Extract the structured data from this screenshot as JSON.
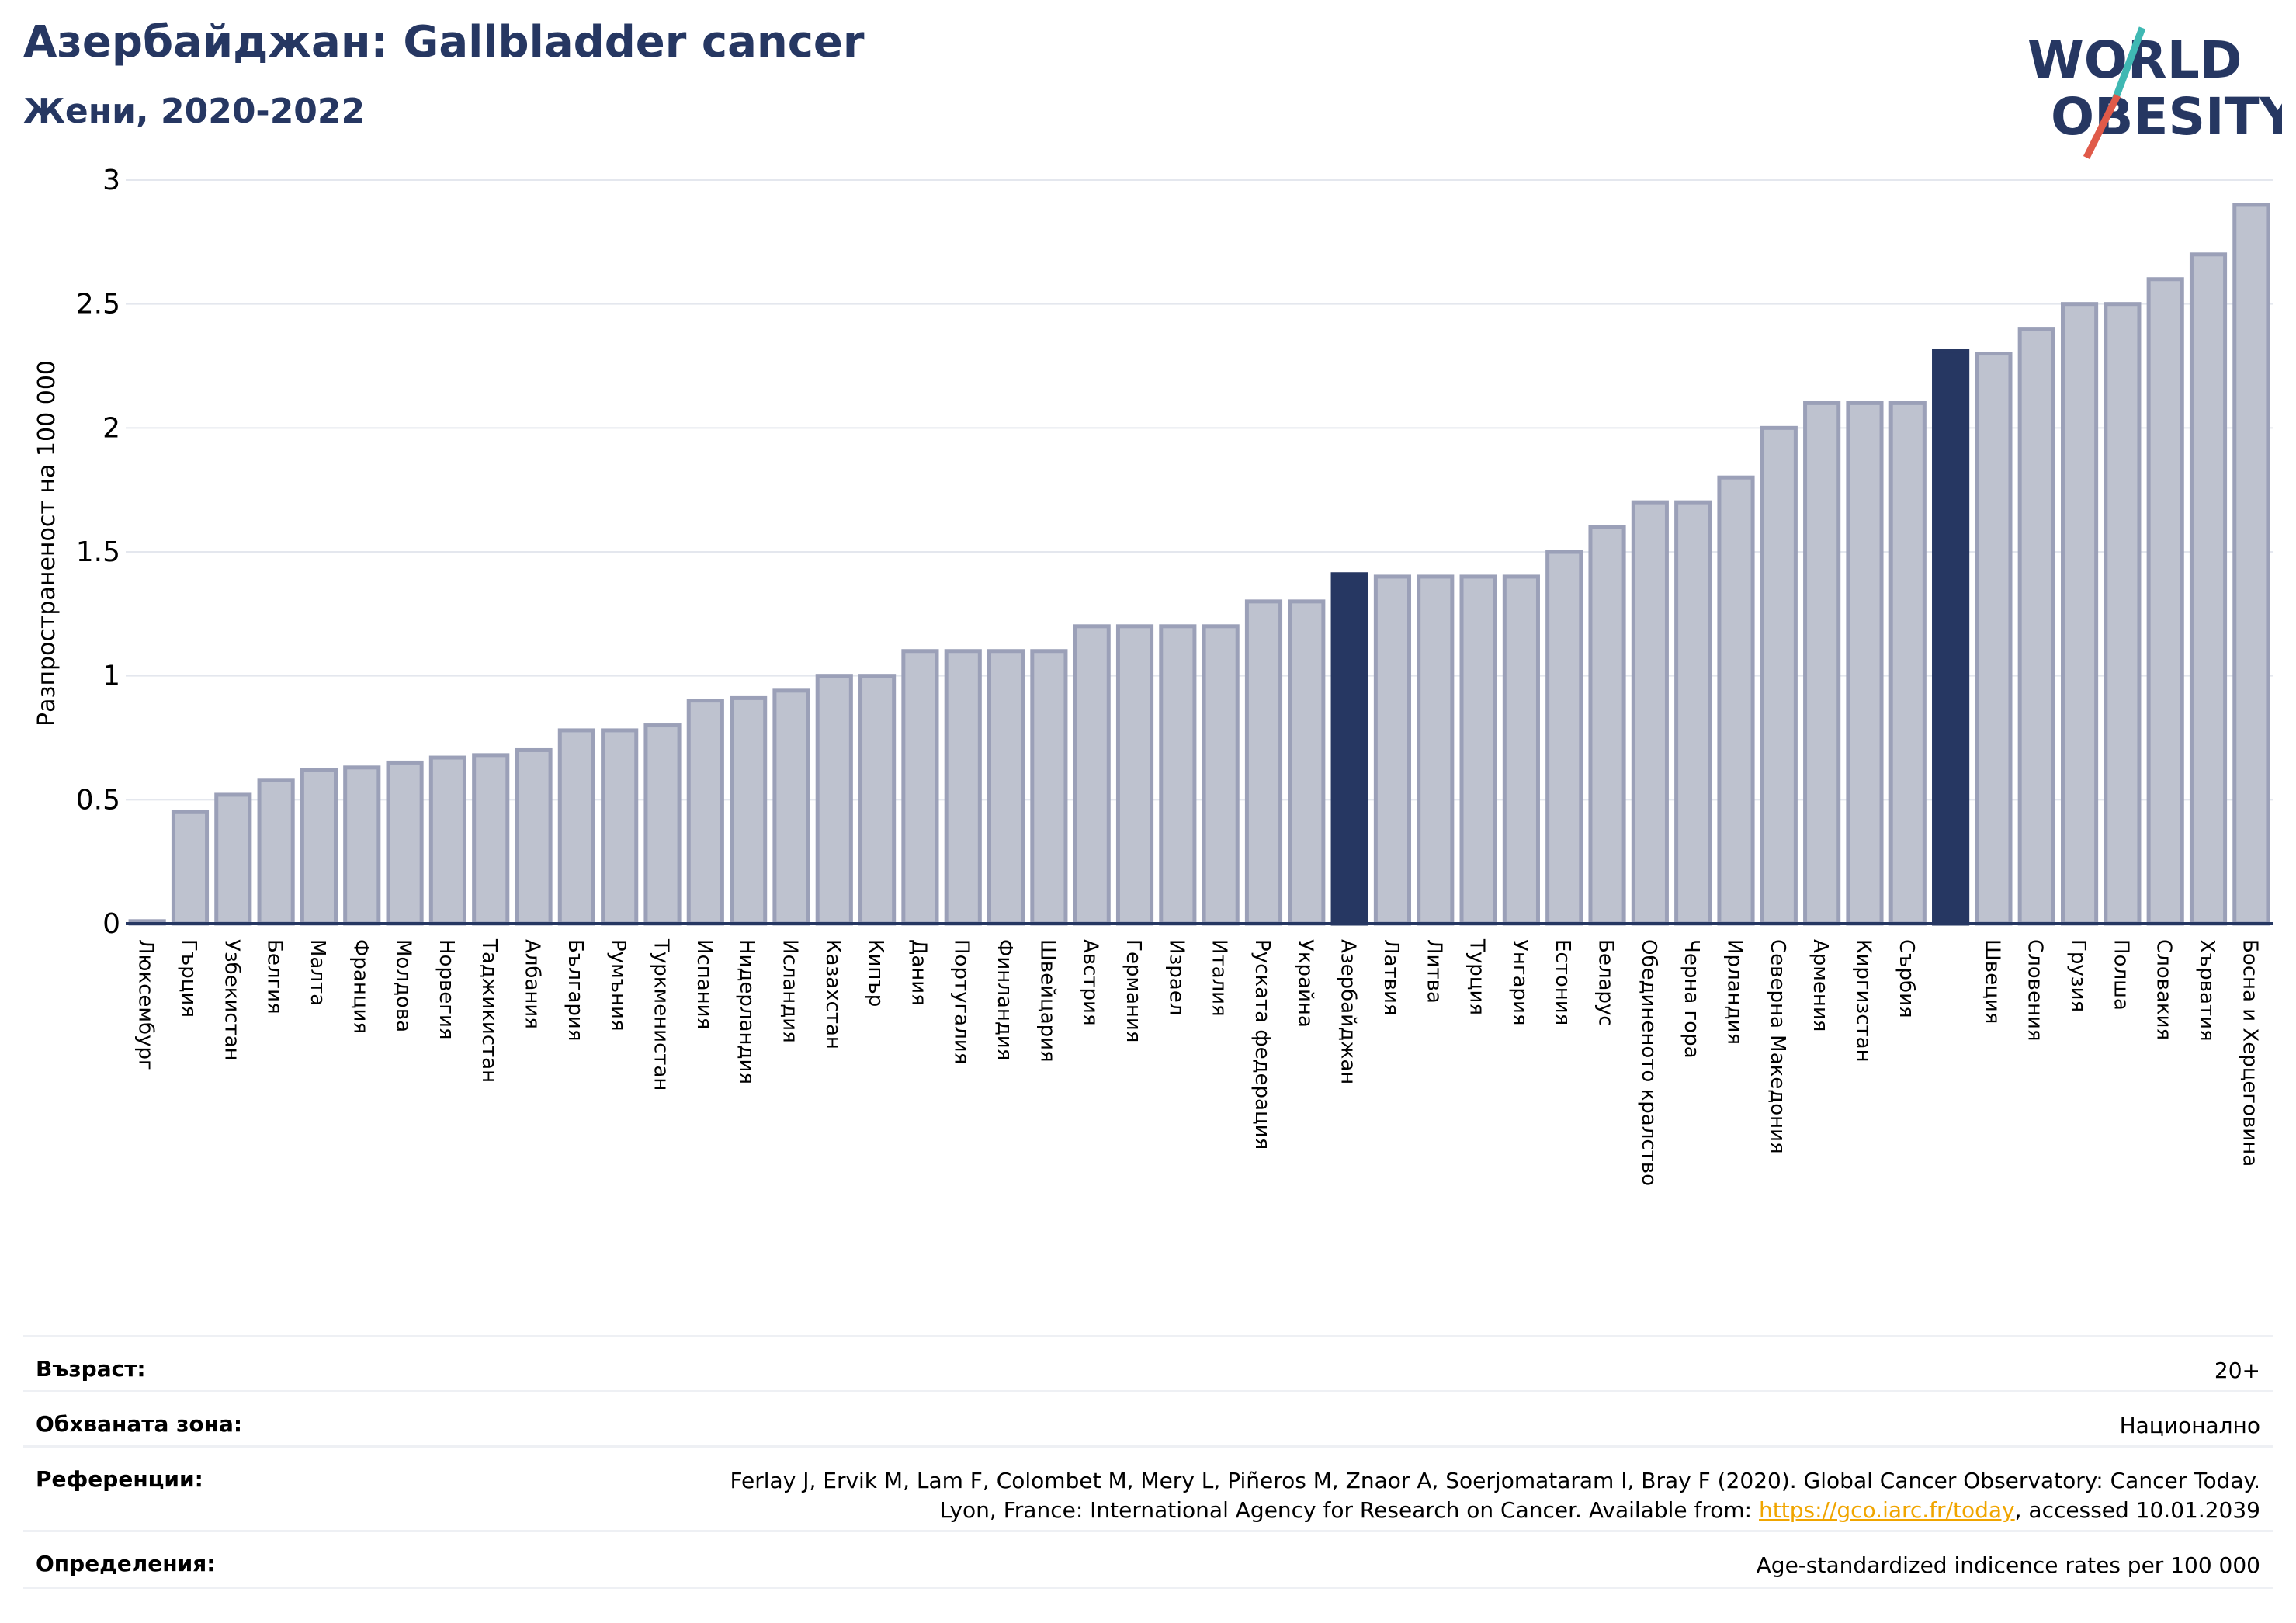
{
  "header": {
    "title": "Азербайджан: Gallbladder cancer",
    "subtitle": "Жени, 2020-2022"
  },
  "logo": {
    "line1": "WORLD",
    "line2": "OBESITY"
  },
  "colors": {
    "highlight": "#263762",
    "bar_fill": "#bec2cf",
    "bar_stroke": "#9ba0b8",
    "grid": "#e4e7ee",
    "title": "#263762",
    "link": "#f0a500",
    "logo_teal": "#3fb8b3",
    "logo_red": "#e05a49"
  },
  "chart_data": {
    "type": "bar",
    "ylabel": "Разпространеност  на 100 000",
    "ylim": [
      0,
      3
    ],
    "yticks": [
      "0",
      "0.5",
      "1",
      "1.5",
      "2",
      "2.5",
      "3"
    ],
    "grid": true,
    "categories": [
      "Люксембург",
      "Гърция",
      "Узбекистан",
      "Белгия",
      "Малта",
      "Франция",
      "Молдова",
      "Норвегия",
      "Таджикистан",
      "Албания",
      "България",
      "Румъния",
      "Туркменистан",
      "Испания",
      "Нидерландия",
      "Исландия",
      "Казахстан",
      "Кипър",
      "Дания",
      "Португалия",
      "Финландия",
      "Швейцария",
      "Австрия",
      "Германия",
      "Израел",
      "Италия",
      "Руската федерация",
      "Украйна",
      "Азербайджан",
      "Латвия",
      "Литва",
      "Турция",
      "Унгария",
      "Естония",
      "Беларус",
      "Обединеното кралство",
      "Черна гора",
      "Ирландия",
      "Северна Македония",
      "Армения",
      "Киргизстан",
      "Сърбия",
      "",
      "Швеция",
      "Словения",
      "Грузия",
      "Полша",
      "Словакия",
      "Хърватия",
      "Босна и Херцеговина"
    ],
    "values": [
      0.01,
      0.45,
      0.52,
      0.58,
      0.62,
      0.63,
      0.65,
      0.67,
      0.68,
      0.7,
      0.78,
      0.78,
      0.8,
      0.9,
      0.91,
      0.94,
      1.0,
      1.0,
      1.1,
      1.1,
      1.1,
      1.1,
      1.2,
      1.2,
      1.2,
      1.2,
      1.3,
      1.3,
      1.41,
      1.4,
      1.4,
      1.4,
      1.4,
      1.5,
      1.6,
      1.7,
      1.7,
      1.8,
      2.0,
      2.1,
      2.1,
      2.1,
      2.31,
      2.3,
      2.4,
      2.5,
      2.5,
      2.6,
      2.7,
      2.9
    ],
    "highlighted": [
      28,
      42
    ]
  },
  "info": {
    "age_label": "Възраст:",
    "age_value": "20+",
    "area_label": "Обхваната зона:",
    "area_value": "Национално",
    "refs_label": "Референции:",
    "refs_line1": "Ferlay J, Ervik M, Lam F, Colombet M, Mery L, Piñeros M, Znaor A, Soerjomataram I, Bray F (2020). Global Cancer Observatory: Cancer Today.",
    "refs_line2_pre": "Lyon, France: International Agency for Research on Cancer. Available from: ",
    "refs_link": "https://gco.iarc.fr/today",
    "refs_line2_post": ", accessed 10.01.2039",
    "defs_label": "Определения:",
    "defs_value": "Age-standardized indicence rates per 100 000"
  }
}
